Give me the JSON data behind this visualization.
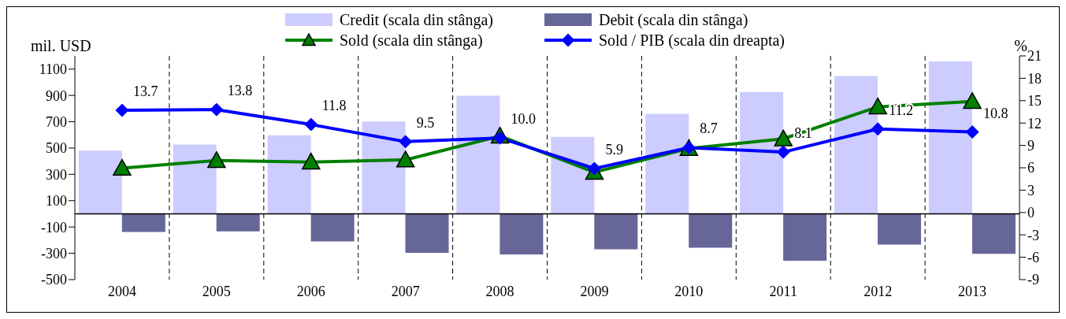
{
  "chart_data": {
    "type": "bar",
    "categories": [
      "2004",
      "2005",
      "2006",
      "2007",
      "2008",
      "2009",
      "2010",
      "2011",
      "2012",
      "2013"
    ],
    "ylabel": "mil. USD",
    "y2label": "%",
    "ylim": [
      -500,
      1200
    ],
    "yticks": [
      -500,
      -300,
      -100,
      100,
      300,
      500,
      700,
      900,
      1100
    ],
    "y2lim": [
      -9,
      21
    ],
    "y2ticks": [
      -9,
      -6,
      -3,
      0,
      3,
      6,
      9,
      12,
      15,
      18,
      21
    ],
    "grid": "x",
    "legend": "top",
    "series": [
      {
        "name": "Credit (scala din stânga)",
        "color": "#ccccff",
        "values": [
          480,
          527,
          597,
          702,
          898,
          585,
          760,
          925,
          1047,
          1158
        ]
      },
      {
        "name": "Debit (scala din stânga)",
        "color": "#666699",
        "values": [
          -138,
          -133,
          -209,
          -296,
          -309,
          -269,
          -257,
          -357,
          -234,
          -304
        ]
      },
      {
        "name": "Sold (scala din stânga)",
        "type": "line",
        "color": "#008000",
        "marker": "triangle",
        "values": [
          347,
          405,
          394,
          410,
          591,
          316,
          497,
          570,
          813,
          854
        ]
      },
      {
        "name": "Sold / PIB (scala din dreapta)",
        "type": "line",
        "axis": "y2",
        "color": "#0000ff",
        "marker": "diamond",
        "values": [
          13.7,
          13.8,
          11.8,
          9.5,
          10.0,
          5.9,
          8.7,
          8.1,
          11.2,
          10.8
        ],
        "value_labels": [
          "13.7",
          "13.8",
          "11.8",
          "9.5",
          "10.0",
          "5.9",
          "8.7",
          "8.1",
          "11.2",
          "10.8"
        ]
      }
    ]
  }
}
